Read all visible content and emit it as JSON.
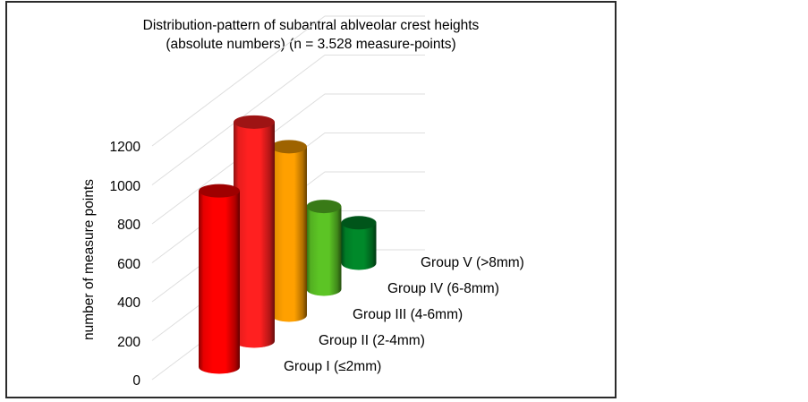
{
  "chart_data": {
    "type": "bar",
    "subtype": "3d-cylinder-depth",
    "title": "Distribution-pattern of subantral ablveolar crest heights",
    "subtitle": "(absolute numbers) (n = 3.528 measure-points)",
    "title_lines": [
      "Distribution-pattern of subantral ablveolar crest heights",
      "(absolute numbers) (n = 3.528 measure-points)"
    ],
    "xlabel": "",
    "ylabel": "number of measure points",
    "ylim": [
      0,
      1200
    ],
    "yticks": [
      0,
      200,
      400,
      600,
      800,
      1000,
      1200
    ],
    "ytick_labels": [
      "0",
      "200",
      "400",
      "600",
      "800",
      "1000",
      "1200"
    ],
    "grid": true,
    "legend": null,
    "categories": [
      "Group I (≤2mm)",
      "Group II (2-4mm)",
      "Group III (4-6mm)",
      "Group IV (6-8mm)",
      "Group V (>8mm)"
    ],
    "values": [
      905,
      1125,
      865,
      425,
      208
    ],
    "colors": [
      "#ff0000",
      "#ff2020",
      "#ffa000",
      "#5cc425",
      "#00892a"
    ],
    "n_total": 3528
  },
  "frame": {
    "border_color": "#2b2b2b"
  }
}
